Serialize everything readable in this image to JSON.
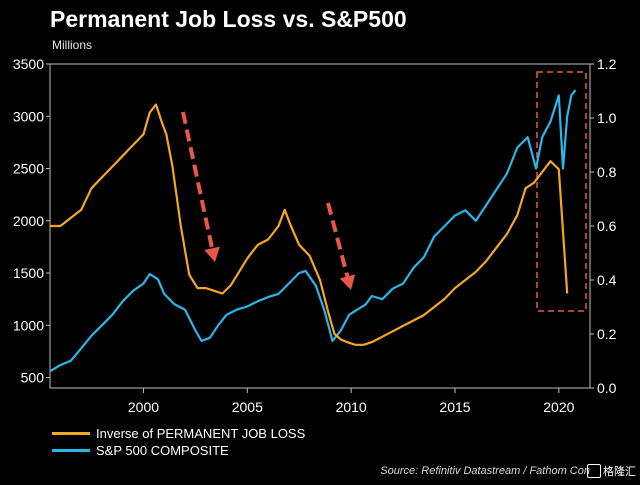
{
  "chart_data": {
    "type": "line",
    "title": "Permanent Job Loss vs. S&P500",
    "subtitle": "Millions",
    "source": "Source: Refinitiv Datastream / Fathom Con",
    "watermark": "格隆汇",
    "x_ticks": [
      2000,
      2005,
      2010,
      2015,
      2020
    ],
    "xlim": [
      1995.5,
      2021.5
    ],
    "y_left_ticks": [
      500,
      1000,
      1500,
      2000,
      2500,
      3000,
      3500
    ],
    "y_left_lim": [
      400,
      3500
    ],
    "y_right_ticks": [
      "0.0",
      "0.2",
      "0.4",
      "0.6",
      "0.8",
      "1.0",
      "1.2"
    ],
    "y_right_lim": [
      0,
      1.2
    ],
    "grid": false,
    "legend_position": "bottom-left",
    "series": [
      {
        "name": "Inverse of PERMANENT JOB LOSS",
        "axis": "right",
        "color": "#f5a623",
        "x": [
          1995.5,
          1996.0,
          1996.5,
          1997.0,
          1997.5,
          1998.0,
          1998.5,
          1999.0,
          1999.5,
          2000.0,
          2000.3,
          2000.6,
          2000.9,
          2001.1,
          2001.4,
          2001.8,
          2002.2,
          2002.6,
          2003.0,
          2003.4,
          2003.8,
          2004.2,
          2004.6,
          2005.0,
          2005.5,
          2006.0,
          2006.5,
          2006.8,
          2007.1,
          2007.5,
          2008.0,
          2008.5,
          2008.9,
          2009.2,
          2009.5,
          2009.8,
          2010.2,
          2010.6,
          2011.0,
          2011.5,
          2012.0,
          2012.5,
          2013.0,
          2013.5,
          2014.0,
          2014.5,
          2015.0,
          2015.5,
          2016.0,
          2016.5,
          2017.0,
          2017.5,
          2018.0,
          2018.4,
          2018.8,
          2019.2,
          2019.6,
          2020.0,
          2020.2,
          2020.4
        ],
        "y": [
          0.6,
          0.6,
          0.63,
          0.66,
          0.74,
          0.78,
          0.82,
          0.86,
          0.9,
          0.94,
          1.02,
          1.05,
          0.98,
          0.94,
          0.82,
          0.6,
          0.42,
          0.37,
          0.37,
          0.36,
          0.35,
          0.38,
          0.43,
          0.48,
          0.53,
          0.55,
          0.6,
          0.66,
          0.6,
          0.53,
          0.49,
          0.4,
          0.28,
          0.2,
          0.18,
          0.17,
          0.16,
          0.16,
          0.17,
          0.19,
          0.21,
          0.23,
          0.25,
          0.27,
          0.3,
          0.33,
          0.37,
          0.4,
          0.43,
          0.47,
          0.52,
          0.57,
          0.64,
          0.74,
          0.76,
          0.8,
          0.84,
          0.81,
          0.58,
          0.35
        ]
      },
      {
        "name": "S&P 500 COMPOSITE",
        "axis": "left",
        "color": "#29b6e8",
        "x": [
          1995.5,
          1996.0,
          1996.5,
          1997.0,
          1997.5,
          1998.0,
          1998.5,
          1999.0,
          1999.5,
          2000.0,
          2000.3,
          2000.7,
          2001.0,
          2001.5,
          2002.0,
          2002.5,
          2002.8,
          2003.2,
          2003.6,
          2004.0,
          2004.5,
          2005.0,
          2005.5,
          2006.0,
          2006.5,
          2007.0,
          2007.5,
          2007.8,
          2008.3,
          2008.7,
          2009.1,
          2009.5,
          2009.9,
          2010.3,
          2010.7,
          2011.0,
          2011.5,
          2012.0,
          2012.5,
          2013.0,
          2013.5,
          2014.0,
          2014.5,
          2015.0,
          2015.5,
          2016.0,
          2016.5,
          2017.0,
          2017.5,
          2018.0,
          2018.5,
          2018.9,
          2019.2,
          2019.6,
          2020.0,
          2020.2,
          2020.4,
          2020.6,
          2020.8
        ],
        "y": [
          560,
          620,
          660,
          780,
          900,
          1000,
          1100,
          1230,
          1330,
          1400,
          1490,
          1440,
          1300,
          1200,
          1150,
          950,
          850,
          880,
          1000,
          1100,
          1150,
          1180,
          1230,
          1270,
          1300,
          1400,
          1500,
          1520,
          1380,
          1150,
          850,
          950,
          1100,
          1150,
          1200,
          1280,
          1250,
          1350,
          1400,
          1550,
          1650,
          1850,
          1950,
          2050,
          2100,
          2000,
          2150,
          2300,
          2450,
          2700,
          2800,
          2500,
          2800,
          2950,
          3200,
          2500,
          3000,
          3200,
          3250
        ]
      }
    ]
  }
}
